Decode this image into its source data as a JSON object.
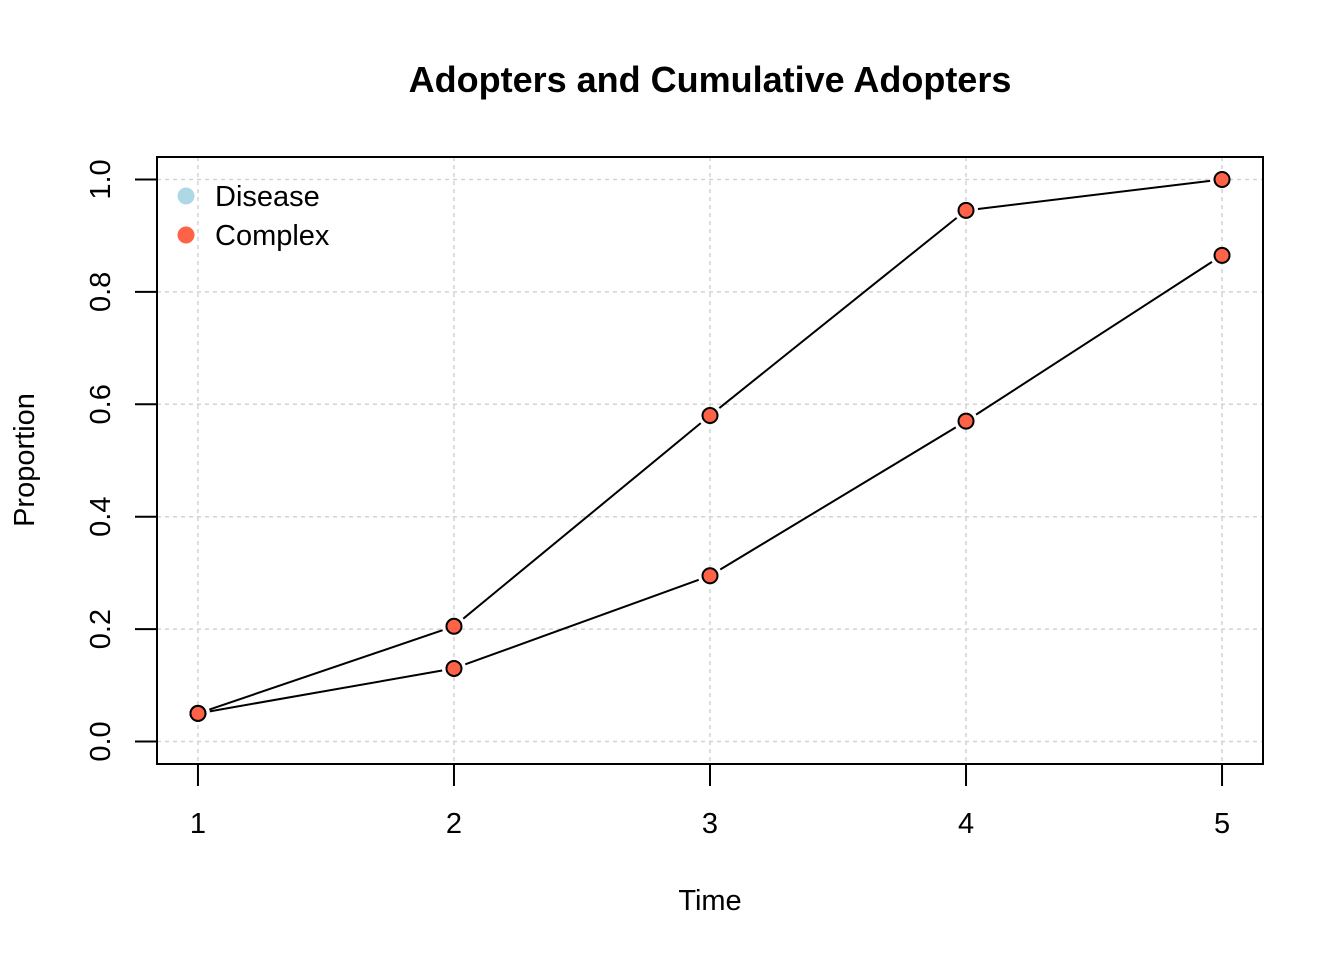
{
  "chart_data": {
    "type": "line",
    "title": "Adopters and Cumulative Adopters",
    "xlabel": "Time",
    "ylabel": "Proportion",
    "x": [
      1,
      2,
      3,
      4,
      5
    ],
    "xlim": [
      0.84,
      5.16
    ],
    "ylim": [
      -0.04,
      1.04
    ],
    "xticks": [
      "1",
      "2",
      "3",
      "4",
      "5"
    ],
    "yticks": [
      "0.0",
      "0.2",
      "0.4",
      "0.6",
      "0.8",
      "1.0"
    ],
    "ytick_values": [
      0,
      0.2,
      0.4,
      0.6,
      0.8,
      1.0
    ],
    "grid": true,
    "legend_position": "top-left",
    "legend": [
      {
        "label": "Disease",
        "color": "#add8e6"
      },
      {
        "label": "Complex",
        "color": "#ff6347"
      }
    ],
    "series": [
      {
        "values": [
          0.05,
          0.205,
          0.58,
          0.945,
          1.0
        ],
        "color": "#ff6347"
      },
      {
        "values": [
          0.05,
          0.13,
          0.295,
          0.57,
          0.865
        ],
        "color": "#ff6347"
      }
    ]
  }
}
